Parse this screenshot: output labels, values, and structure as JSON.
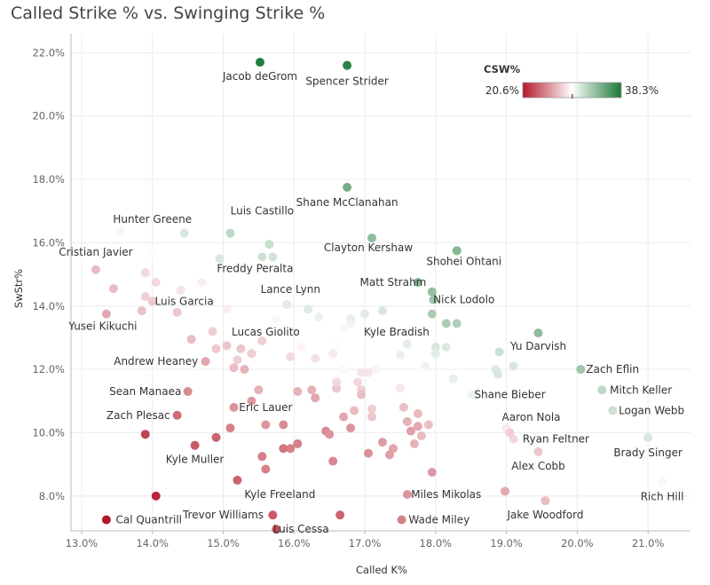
{
  "chart_data": {
    "type": "scatter",
    "title": "Called Strike % vs. Swinging Strike %",
    "xlabel": "Called K%",
    "ylabel": "SwStr%",
    "xlim": [
      12.85,
      21.6
    ],
    "ylim": [
      6.9,
      22.6
    ],
    "x_ticks": [
      "13.0%",
      "14.0%",
      "15.0%",
      "16.0%",
      "17.0%",
      "18.0%",
      "19.0%",
      "20.0%",
      "21.0%"
    ],
    "x_tick_values": [
      13,
      14,
      15,
      16,
      17,
      18,
      19,
      20,
      21
    ],
    "y_ticks": [
      "8.0%",
      "10.0%",
      "12.0%",
      "14.0%",
      "16.0%",
      "18.0%",
      "20.0%",
      "22.0%"
    ],
    "y_tick_values": [
      8,
      10,
      12,
      14,
      16,
      18,
      20,
      22
    ],
    "legend": {
      "title": "CSW%",
      "min_label": "20.6%",
      "max_label": "38.3%",
      "min": 20.6,
      "max": 38.3,
      "marker_value": 29.5
    },
    "colors": {
      "low": "#b2182b",
      "mid": "#ffffff",
      "high": "#1b7837"
    },
    "points": [
      {
        "x": 15.52,
        "y": 21.7,
        "c": 38.0
      },
      {
        "x": 16.75,
        "y": 21.6,
        "c": 37.6
      },
      {
        "x": 16.75,
        "y": 17.75,
        "c": 34.8
      },
      {
        "x": 17.1,
        "y": 16.15,
        "c": 33.8
      },
      {
        "x": 18.3,
        "y": 15.75,
        "c": 34.2
      },
      {
        "x": 15.1,
        "y": 16.3,
        "c": 32.0
      },
      {
        "x": 15.65,
        "y": 15.95,
        "c": 31.6
      },
      {
        "x": 15.55,
        "y": 15.55,
        "c": 31.4
      },
      {
        "x": 15.7,
        "y": 15.55,
        "c": 31.2
      },
      {
        "x": 14.45,
        "y": 16.3,
        "c": 31.0
      },
      {
        "x": 13.55,
        "y": 16.35,
        "c": 30.0
      },
      {
        "x": 14.0,
        "y": 15.7,
        "c": 29.6
      },
      {
        "x": 14.95,
        "y": 15.5,
        "c": 31.0
      },
      {
        "x": 17.75,
        "y": 14.75,
        "c": 34.0
      },
      {
        "x": 17.95,
        "y": 14.45,
        "c": 33.6
      },
      {
        "x": 17.97,
        "y": 14.2,
        "c": 33.2
      },
      {
        "x": 17.95,
        "y": 13.75,
        "c": 32.8
      },
      {
        "x": 18.15,
        "y": 13.45,
        "c": 32.8
      },
      {
        "x": 18.3,
        "y": 13.45,
        "c": 32.6
      },
      {
        "x": 19.45,
        "y": 13.15,
        "c": 33.8
      },
      {
        "x": 20.05,
        "y": 12.0,
        "c": 33.2
      },
      {
        "x": 20.35,
        "y": 11.35,
        "c": 32.0
      },
      {
        "x": 20.5,
        "y": 10.7,
        "c": 31.4
      },
      {
        "x": 21.0,
        "y": 9.85,
        "c": 31.0
      },
      {
        "x": 21.2,
        "y": 8.45,
        "c": 29.8
      },
      {
        "x": 18.9,
        "y": 12.55,
        "c": 31.4
      },
      {
        "x": 18.85,
        "y": 12.0,
        "c": 30.8
      },
      {
        "x": 18.88,
        "y": 11.85,
        "c": 31.0
      },
      {
        "x": 19.1,
        "y": 12.1,
        "c": 31.0
      },
      {
        "x": 18.0,
        "y": 12.7,
        "c": 31.0
      },
      {
        "x": 18.15,
        "y": 12.7,
        "c": 30.8
      },
      {
        "x": 18.0,
        "y": 12.5,
        "c": 30.6
      },
      {
        "x": 17.6,
        "y": 12.8,
        "c": 30.6
      },
      {
        "x": 17.5,
        "y": 12.45,
        "c": 30.3
      },
      {
        "x": 17.85,
        "y": 12.1,
        "c": 30.1
      },
      {
        "x": 18.25,
        "y": 11.7,
        "c": 30.4
      },
      {
        "x": 18.5,
        "y": 11.2,
        "c": 29.9
      },
      {
        "x": 17.25,
        "y": 13.85,
        "c": 31.0
      },
      {
        "x": 17.0,
        "y": 13.75,
        "c": 30.6
      },
      {
        "x": 16.8,
        "y": 13.6,
        "c": 30.4
      },
      {
        "x": 16.8,
        "y": 13.45,
        "c": 30.1
      },
      {
        "x": 16.2,
        "y": 13.9,
        "c": 30.8
      },
      {
        "x": 16.35,
        "y": 13.65,
        "c": 30.3
      },
      {
        "x": 15.9,
        "y": 14.05,
        "c": 30.6
      },
      {
        "x": 15.75,
        "y": 13.6,
        "c": 29.8
      },
      {
        "x": 16.7,
        "y": 13.3,
        "c": 29.7
      },
      {
        "x": 16.6,
        "y": 12.8,
        "c": 29.3
      },
      {
        "x": 16.55,
        "y": 12.5,
        "c": 28.6
      },
      {
        "x": 16.3,
        "y": 12.35,
        "c": 28.3
      },
      {
        "x": 16.1,
        "y": 12.7,
        "c": 29.0
      },
      {
        "x": 15.95,
        "y": 12.4,
        "c": 28.0
      },
      {
        "x": 16.7,
        "y": 12.0,
        "c": 29.2
      },
      {
        "x": 16.95,
        "y": 11.9,
        "c": 28.4
      },
      {
        "x": 16.9,
        "y": 11.6,
        "c": 28.0
      },
      {
        "x": 16.95,
        "y": 11.35,
        "c": 27.6
      },
      {
        "x": 17.05,
        "y": 11.9,
        "c": 28.5
      },
      {
        "x": 17.15,
        "y": 12.0,
        "c": 28.9
      },
      {
        "x": 17.5,
        "y": 11.4,
        "c": 28.5
      },
      {
        "x": 17.8,
        "y": 11.9,
        "c": 29.4
      },
      {
        "x": 18.55,
        "y": 11.2,
        "c": 30.3
      },
      {
        "x": 19.0,
        "y": 10.15,
        "c": 28.6
      },
      {
        "x": 19.1,
        "y": 9.8,
        "c": 28.0
      },
      {
        "x": 19.05,
        "y": 10.0,
        "c": 27.6
      },
      {
        "x": 19.45,
        "y": 9.4,
        "c": 27.3
      },
      {
        "x": 19.55,
        "y": 7.85,
        "c": 26.9
      },
      {
        "x": 18.98,
        "y": 8.15,
        "c": 26.1
      },
      {
        "x": 17.6,
        "y": 8.05,
        "c": 25.4
      },
      {
        "x": 17.52,
        "y": 7.25,
        "c": 24.6
      },
      {
        "x": 17.95,
        "y": 8.75,
        "c": 25.6
      },
      {
        "x": 17.4,
        "y": 9.5,
        "c": 26.0
      },
      {
        "x": 17.35,
        "y": 9.3,
        "c": 25.8
      },
      {
        "x": 17.25,
        "y": 9.7,
        "c": 25.6
      },
      {
        "x": 17.7,
        "y": 9.65,
        "c": 26.5
      },
      {
        "x": 17.8,
        "y": 9.9,
        "c": 26.8
      },
      {
        "x": 17.9,
        "y": 10.25,
        "c": 27.0
      },
      {
        "x": 17.75,
        "y": 10.2,
        "c": 26.1
      },
      {
        "x": 17.6,
        "y": 10.35,
        "c": 26.5
      },
      {
        "x": 17.65,
        "y": 10.05,
        "c": 25.8
      },
      {
        "x": 17.55,
        "y": 10.8,
        "c": 27.0
      },
      {
        "x": 17.75,
        "y": 10.6,
        "c": 26.8
      },
      {
        "x": 17.1,
        "y": 10.75,
        "c": 27.6
      },
      {
        "x": 17.1,
        "y": 10.5,
        "c": 27.3
      },
      {
        "x": 16.85,
        "y": 10.7,
        "c": 26.9
      },
      {
        "x": 16.7,
        "y": 10.5,
        "c": 26.1
      },
      {
        "x": 16.8,
        "y": 10.15,
        "c": 25.4
      },
      {
        "x": 16.95,
        "y": 11.2,
        "c": 27.0
      },
      {
        "x": 16.45,
        "y": 10.05,
        "c": 25.0
      },
      {
        "x": 16.5,
        "y": 9.95,
        "c": 25.3
      },
      {
        "x": 16.55,
        "y": 9.1,
        "c": 24.9
      },
      {
        "x": 17.05,
        "y": 9.35,
        "c": 25.2
      },
      {
        "x": 16.3,
        "y": 11.1,
        "c": 26.1
      },
      {
        "x": 16.25,
        "y": 11.35,
        "c": 26.5
      },
      {
        "x": 16.05,
        "y": 11.3,
        "c": 26.5
      },
      {
        "x": 16.6,
        "y": 11.4,
        "c": 27.3
      },
      {
        "x": 16.6,
        "y": 11.6,
        "c": 28.0
      },
      {
        "x": 16.05,
        "y": 9.65,
        "c": 24.6
      },
      {
        "x": 15.95,
        "y": 9.5,
        "c": 24.6
      },
      {
        "x": 15.85,
        "y": 9.5,
        "c": 24.2
      },
      {
        "x": 15.85,
        "y": 10.25,
        "c": 25.0
      },
      {
        "x": 15.6,
        "y": 10.25,
        "c": 25.4
      },
      {
        "x": 15.55,
        "y": 9.25,
        "c": 24.6
      },
      {
        "x": 15.6,
        "y": 8.85,
        "c": 24.6
      },
      {
        "x": 15.5,
        "y": 11.35,
        "c": 26.5
      },
      {
        "x": 15.4,
        "y": 11.0,
        "c": 25.6
      },
      {
        "x": 15.15,
        "y": 10.8,
        "c": 25.3
      },
      {
        "x": 15.1,
        "y": 10.15,
        "c": 24.6
      },
      {
        "x": 15.2,
        "y": 12.3,
        "c": 27.6
      },
      {
        "x": 15.15,
        "y": 12.05,
        "c": 26.9
      },
      {
        "x": 15.3,
        "y": 12.0,
        "c": 26.5
      },
      {
        "x": 15.05,
        "y": 12.75,
        "c": 27.3
      },
      {
        "x": 15.25,
        "y": 12.65,
        "c": 27.3
      },
      {
        "x": 15.4,
        "y": 12.5,
        "c": 27.6
      },
      {
        "x": 15.55,
        "y": 12.9,
        "c": 27.6
      },
      {
        "x": 14.9,
        "y": 12.65,
        "c": 27.3
      },
      {
        "x": 14.85,
        "y": 13.2,
        "c": 27.6
      },
      {
        "x": 14.55,
        "y": 12.95,
        "c": 26.9
      },
      {
        "x": 14.75,
        "y": 12.25,
        "c": 26.1
      },
      {
        "x": 14.5,
        "y": 11.3,
        "c": 25.0
      },
      {
        "x": 14.35,
        "y": 10.55,
        "c": 23.8
      },
      {
        "x": 14.9,
        "y": 9.85,
        "c": 23.5
      },
      {
        "x": 14.6,
        "y": 9.6,
        "c": 23.1
      },
      {
        "x": 15.2,
        "y": 8.5,
        "c": 23.5
      },
      {
        "x": 13.9,
        "y": 9.95,
        "c": 22.3
      },
      {
        "x": 14.05,
        "y": 8.0,
        "c": 21.2
      },
      {
        "x": 13.35,
        "y": 7.25,
        "c": 20.6
      },
      {
        "x": 15.7,
        "y": 7.4,
        "c": 23.1
      },
      {
        "x": 15.75,
        "y": 6.95,
        "c": 22.7
      },
      {
        "x": 16.65,
        "y": 7.4,
        "c": 23.5
      },
      {
        "x": 15.05,
        "y": 13.9,
        "c": 28.8
      },
      {
        "x": 14.7,
        "y": 14.75,
        "c": 28.8
      },
      {
        "x": 14.4,
        "y": 14.5,
        "c": 28.4
      },
      {
        "x": 14.35,
        "y": 13.8,
        "c": 27.3
      },
      {
        "x": 14.05,
        "y": 14.75,
        "c": 28.0
      },
      {
        "x": 14.0,
        "y": 14.15,
        "c": 27.3
      },
      {
        "x": 13.9,
        "y": 15.05,
        "c": 28.0
      },
      {
        "x": 13.9,
        "y": 14.3,
        "c": 27.6
      },
      {
        "x": 13.85,
        "y": 13.85,
        "c": 27.0
      },
      {
        "x": 13.45,
        "y": 14.55,
        "c": 26.9
      },
      {
        "x": 13.2,
        "y": 15.15,
        "c": 26.9
      },
      {
        "x": 13.35,
        "y": 13.75,
        "c": 26.1
      }
    ],
    "labels": [
      {
        "text": "Jacob deGrom",
        "x": 15.52,
        "y": 21.7,
        "anchor": "middle",
        "dy": 20
      },
      {
        "text": "Spencer Strider",
        "x": 16.75,
        "y": 21.6,
        "anchor": "middle",
        "dy": 22
      },
      {
        "text": "Shane McClanahan",
        "x": 16.75,
        "y": 17.75,
        "anchor": "middle",
        "dy": 21
      },
      {
        "text": "Hunter Greene",
        "x": 14.0,
        "y": 16.35,
        "anchor": "middle",
        "dy": -10
      },
      {
        "text": "Luis Castillo",
        "x": 15.55,
        "y": 16.3,
        "anchor": "middle",
        "dy": -21
      },
      {
        "text": "Cristian Javier",
        "x": 13.2,
        "y": 15.7,
        "anchor": "middle",
        "dy": 4
      },
      {
        "text": "Clayton Kershaw",
        "x": 17.05,
        "y": 16.15,
        "anchor": "middle",
        "dy": 15
      },
      {
        "text": "Shohei Ohtani",
        "x": 18.4,
        "y": 15.75,
        "anchor": "middle",
        "dy": 16
      },
      {
        "text": "Freddy Peralta",
        "x": 15.45,
        "y": 15.55,
        "anchor": "middle",
        "dy": 17
      },
      {
        "text": "Matt Strahm",
        "x": 17.4,
        "y": 14.75,
        "anchor": "middle",
        "dy": 4
      },
      {
        "text": "Lance Lynn",
        "x": 15.95,
        "y": 14.05,
        "anchor": "middle",
        "dy": -13
      },
      {
        "text": "Nick Lodolo",
        "x": 18.4,
        "y": 14.2,
        "anchor": "middle",
        "dy": 4
      },
      {
        "text": "Luis Garcia",
        "x": 14.45,
        "y": 14.15,
        "anchor": "middle",
        "dy": 4
      },
      {
        "text": "Yusei Kikuchi",
        "x": 13.3,
        "y": 13.75,
        "anchor": "middle",
        "dy": 18
      },
      {
        "text": "Lucas Giolito",
        "x": 15.6,
        "y": 13.6,
        "anchor": "middle",
        "dy": 19
      },
      {
        "text": "Kyle Bradish",
        "x": 17.45,
        "y": 13.6,
        "anchor": "middle",
        "dy": 19
      },
      {
        "text": "Yu Darvish",
        "x": 19.45,
        "y": 13.15,
        "anchor": "middle",
        "dy": 19
      },
      {
        "text": "Andrew Heaney",
        "x": 14.05,
        "y": 12.25,
        "anchor": "middle",
        "dy": 4
      },
      {
        "text": "Zach Eflin",
        "x": 20.5,
        "y": 12.0,
        "anchor": "middle",
        "dy": 4
      },
      {
        "text": "Sean Manaea",
        "x": 13.9,
        "y": 11.3,
        "anchor": "middle",
        "dy": 4
      },
      {
        "text": "Shane Bieber",
        "x": 19.05,
        "y": 11.2,
        "anchor": "middle",
        "dy": 4
      },
      {
        "text": "Mitch Keller",
        "x": 20.9,
        "y": 11.35,
        "anchor": "middle",
        "dy": 4
      },
      {
        "text": "Eric Lauer",
        "x": 15.6,
        "y": 10.8,
        "anchor": "middle",
        "dy": 4
      },
      {
        "text": "Zach Plesac",
        "x": 13.8,
        "y": 10.55,
        "anchor": "middle",
        "dy": 4
      },
      {
        "text": "Logan Webb",
        "x": 21.05,
        "y": 10.7,
        "anchor": "middle",
        "dy": 4
      },
      {
        "text": "Aaron Nola",
        "x": 19.35,
        "y": 10.15,
        "anchor": "middle",
        "dy": -8
      },
      {
        "text": "Ryan Feltner",
        "x": 19.7,
        "y": 9.8,
        "anchor": "middle",
        "dy": 4
      },
      {
        "text": "Brady Singer",
        "x": 21.0,
        "y": 9.85,
        "anchor": "middle",
        "dy": 21
      },
      {
        "text": "Kyle Muller",
        "x": 14.6,
        "y": 9.6,
        "anchor": "middle",
        "dy": 20
      },
      {
        "text": "Alex Cobb",
        "x": 19.45,
        "y": 9.4,
        "anchor": "middle",
        "dy": 20
      },
      {
        "text": "Kyle Freeland",
        "x": 15.8,
        "y": 8.5,
        "anchor": "middle",
        "dy": 20
      },
      {
        "text": "Miles Mikolas",
        "x": 18.15,
        "y": 8.05,
        "anchor": "middle",
        "dy": 4
      },
      {
        "text": "Rich Hill",
        "x": 21.2,
        "y": 8.45,
        "anchor": "middle",
        "dy": 21
      },
      {
        "text": "Cal Quantrill",
        "x": 13.95,
        "y": 7.25,
        "anchor": "middle",
        "dy": 4
      },
      {
        "text": "Trevor Williams",
        "x": 15.0,
        "y": 7.4,
        "anchor": "middle",
        "dy": 4
      },
      {
        "text": "Wade Miley",
        "x": 18.05,
        "y": 7.25,
        "anchor": "middle",
        "dy": 4
      },
      {
        "text": "Jake Woodford",
        "x": 19.55,
        "y": 7.85,
        "anchor": "middle",
        "dy": 20
      },
      {
        "text": "Luis Cessa",
        "x": 16.1,
        "y": 6.95,
        "anchor": "middle",
        "dy": 4
      }
    ]
  }
}
